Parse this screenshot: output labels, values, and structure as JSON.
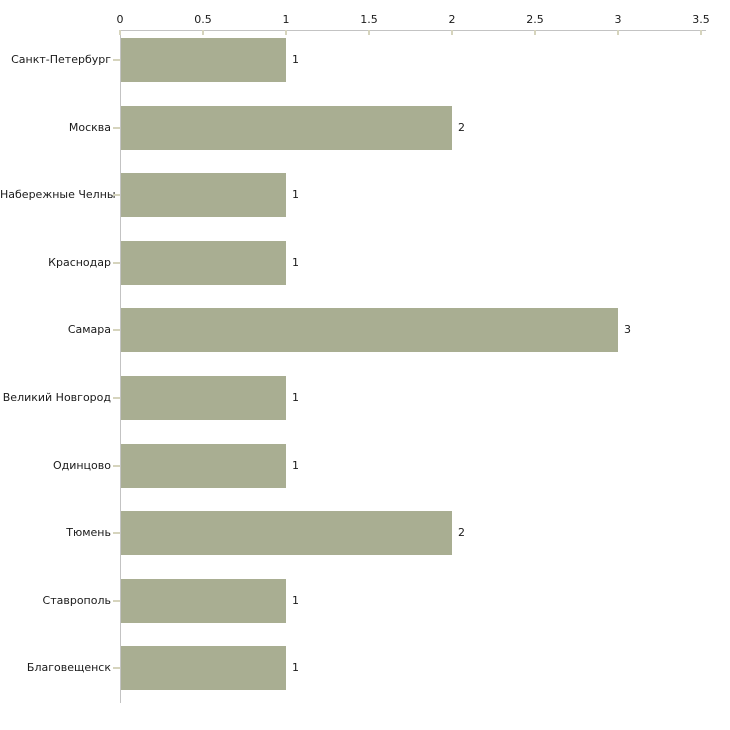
{
  "chart_data": {
    "type": "bar",
    "orientation": "horizontal",
    "title": "",
    "xlabel": "",
    "ylabel": "",
    "grid": false,
    "legend": false,
    "categories": [
      "Санкт-Петербург",
      "Москва",
      "Набережные Челны",
      "Краснодар",
      "Самара",
      "Великий Новгород",
      "Одинцово",
      "Тюмень",
      "Ставрополь",
      "Благовещенск"
    ],
    "values": [
      1,
      2,
      1,
      1,
      3,
      1,
      1,
      2,
      1,
      1
    ],
    "value_labels": [
      "1",
      "2",
      "1",
      "1",
      "3",
      "1",
      "1",
      "2",
      "1",
      "1"
    ],
    "x_axis": {
      "position": "top",
      "min": 0,
      "max": 3.5,
      "tick_step": 0.5,
      "tick_labels": [
        "0",
        "0.5",
        "1",
        "1.5",
        "2",
        "2.5",
        "3",
        "3.5"
      ]
    },
    "colors": {
      "bar": "#a9ae92",
      "axis_line": "#c3c3c3",
      "tick_mark": "#d6d4bd",
      "text": "#1a1a1a",
      "background": "#ffffff"
    }
  }
}
